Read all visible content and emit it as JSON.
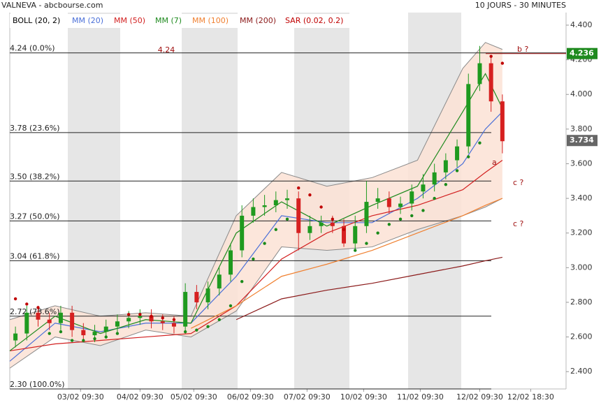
{
  "chart_data": {
    "type": "candlestick",
    "title": "VALNEVA - abcbourse.com",
    "subtitle": "10 JOURS - 30 MINUTES",
    "xlim": [
      0,
      98
    ],
    "ylim": [
      2.3,
      4.4
    ],
    "xticks": [
      {
        "value": 12.5,
        "label": "03/02 09:30"
      },
      {
        "value": 23,
        "label": "04/02 09:30"
      },
      {
        "value": 32.5,
        "label": "05/02 09:30"
      },
      {
        "value": 42.5,
        "label": "06/02 09:30"
      },
      {
        "value": 52.5,
        "label": "07/02 09:30"
      },
      {
        "value": 62.5,
        "label": "10/02 09:30"
      },
      {
        "value": 72.5,
        "label": "11/02 09:30"
      },
      {
        "value": 83,
        "label": "12/02 09:30"
      },
      {
        "value": 92,
        "label": "12/02 18:30"
      }
    ],
    "yticks": [
      {
        "value": 2.4,
        "label": "2.400"
      },
      {
        "value": 2.6,
        "label": "2.600"
      },
      {
        "value": 2.8,
        "label": "2.800"
      },
      {
        "value": 3.0,
        "label": "3.000"
      },
      {
        "value": 3.2,
        "label": "3.200"
      },
      {
        "value": 3.4,
        "label": "3.400"
      },
      {
        "value": 3.6,
        "label": "3.600"
      },
      {
        "value": 3.8,
        "label": "3.800"
      },
      {
        "value": 4.0,
        "label": "4.000"
      },
      {
        "value": 4.2,
        "label": "4.200"
      },
      {
        "value": 4.4,
        "label": "4.400"
      }
    ],
    "up_color": "#1f9a1f",
    "down_color": "#d62020",
    "x": [
      1,
      3,
      5,
      7,
      9,
      11,
      13,
      15,
      17,
      19,
      21,
      23,
      25,
      27,
      29,
      31,
      33,
      35,
      37,
      39,
      41,
      43,
      45,
      47,
      49,
      51,
      53,
      55,
      57,
      59,
      61,
      63,
      65,
      67,
      69,
      71,
      73,
      75,
      77,
      79,
      81,
      83,
      85,
      87
    ],
    "open": [
      2.58,
      2.62,
      2.74,
      2.7,
      2.68,
      2.74,
      2.64,
      2.61,
      2.63,
      2.66,
      2.69,
      2.71,
      2.72,
      2.69,
      2.68,
      2.66,
      2.86,
      2.8,
      2.88,
      2.96,
      3.1,
      3.3,
      3.35,
      3.36,
      3.39,
      3.4,
      3.2,
      3.24,
      3.26,
      3.24,
      3.14,
      3.24,
      3.38,
      3.4,
      3.35,
      3.37,
      3.44,
      3.48,
      3.55,
      3.62,
      3.7,
      4.06,
      4.18,
      3.96
    ],
    "high": [
      2.66,
      2.78,
      2.78,
      2.74,
      2.78,
      2.78,
      2.68,
      2.67,
      2.7,
      2.73,
      2.75,
      2.76,
      2.76,
      2.73,
      2.72,
      2.91,
      2.9,
      2.92,
      3.0,
      3.14,
      3.36,
      3.4,
      3.42,
      3.44,
      3.45,
      3.44,
      3.3,
      3.3,
      3.3,
      3.28,
      3.3,
      3.5,
      3.46,
      3.44,
      3.41,
      3.48,
      3.54,
      3.6,
      3.66,
      3.74,
      4.12,
      4.28,
      4.22,
      4.0
    ],
    "low": [
      2.54,
      2.58,
      2.66,
      2.64,
      2.64,
      2.6,
      2.57,
      2.57,
      2.59,
      2.62,
      2.65,
      2.67,
      2.65,
      2.64,
      2.62,
      2.62,
      2.76,
      2.76,
      2.84,
      2.92,
      3.06,
      3.26,
      3.3,
      3.32,
      3.34,
      3.1,
      3.16,
      3.2,
      3.2,
      3.12,
      3.1,
      3.2,
      3.34,
      3.31,
      3.31,
      3.33,
      3.4,
      3.44,
      3.51,
      3.58,
      3.66,
      4.02,
      3.9,
      3.66
    ],
    "close": [
      2.62,
      2.74,
      2.7,
      2.68,
      2.74,
      2.64,
      2.61,
      2.63,
      2.66,
      2.69,
      2.71,
      2.72,
      2.69,
      2.68,
      2.66,
      2.86,
      2.8,
      2.88,
      2.96,
      3.1,
      3.3,
      3.35,
      3.36,
      3.39,
      3.4,
      3.2,
      3.24,
      3.26,
      3.24,
      3.14,
      3.24,
      3.38,
      3.4,
      3.35,
      3.37,
      3.44,
      3.48,
      3.55,
      3.62,
      3.7,
      4.06,
      4.18,
      3.96,
      3.73
    ],
    "bollinger": {
      "name": "BOLL (20, 2)",
      "color": "#000000",
      "fill": "#fbe2d5",
      "edge": "#8a8a8a",
      "x": [
        0,
        8,
        16,
        24,
        32,
        40,
        48,
        56,
        64,
        72,
        80,
        84,
        87
      ],
      "upper": [
        2.7,
        2.78,
        2.72,
        2.74,
        2.72,
        3.3,
        3.55,
        3.47,
        3.52,
        3.62,
        4.15,
        4.3,
        4.26
      ],
      "lower": [
        2.42,
        2.6,
        2.55,
        2.64,
        2.6,
        2.75,
        3.12,
        3.1,
        3.12,
        3.22,
        3.3,
        3.35,
        3.4
      ]
    },
    "series": [
      {
        "name": "MM (20)",
        "color": "#4a6fd8",
        "x": [
          0,
          8,
          16,
          24,
          32,
          40,
          48,
          56,
          64,
          72,
          80,
          84,
          87
        ],
        "values": [
          2.46,
          2.68,
          2.63,
          2.68,
          2.68,
          2.95,
          3.3,
          3.26,
          3.26,
          3.4,
          3.6,
          3.8,
          3.9
        ]
      },
      {
        "name": "MM (50)",
        "color": "#d21f1f",
        "x": [
          0,
          8,
          16,
          24,
          32,
          40,
          48,
          56,
          64,
          72,
          80,
          84,
          87
        ],
        "values": [
          2.52,
          2.56,
          2.58,
          2.6,
          2.62,
          2.78,
          3.05,
          3.2,
          3.3,
          3.36,
          3.45,
          3.55,
          3.62
        ]
      },
      {
        "name": "MM (7)",
        "color": "#1e8a1e",
        "x": [
          0,
          8,
          16,
          24,
          32,
          40,
          48,
          56,
          64,
          72,
          80,
          84,
          87
        ],
        "values": [
          2.52,
          2.72,
          2.62,
          2.7,
          2.68,
          3.2,
          3.38,
          3.24,
          3.36,
          3.47,
          3.9,
          4.12,
          3.92
        ]
      },
      {
        "name": "MM (100)",
        "color": "#f08030",
        "x": [
          0,
          8,
          16,
          24,
          32,
          40,
          48,
          56,
          64,
          72,
          80,
          84,
          87
        ],
        "values": [
          null,
          null,
          null,
          null,
          2.65,
          2.78,
          2.95,
          3.02,
          3.1,
          3.2,
          3.3,
          3.36,
          3.4
        ]
      },
      {
        "name": "MM (200)",
        "color": "#8b1a1a",
        "x": [
          0,
          8,
          16,
          24,
          32,
          40,
          48,
          56,
          64,
          72,
          80,
          84,
          87
        ],
        "values": [
          null,
          null,
          null,
          null,
          null,
          2.7,
          2.82,
          2.87,
          2.91,
          2.96,
          3.01,
          3.04,
          3.06
        ]
      }
    ],
    "sar": {
      "name": "SAR (0.02, 0.2)",
      "color": "#c00000",
      "above_color": "#c00000",
      "below_color": "#1a8a1a",
      "values": [
        2.82,
        2.79,
        2.77,
        2.62,
        2.63,
        2.58,
        2.58,
        2.59,
        2.6,
        2.62,
        2.73,
        2.73,
        2.72,
        2.71,
        2.7,
        2.63,
        2.64,
        2.66,
        2.7,
        2.78,
        2.92,
        3.05,
        3.14,
        3.22,
        3.28,
        3.46,
        3.42,
        3.35,
        3.28,
        3.22,
        3.1,
        3.14,
        3.2,
        3.25,
        3.28,
        3.3,
        3.33,
        3.4,
        3.48,
        3.56,
        3.64,
        3.72,
        4.22,
        4.18
      ]
    },
    "fibonacci": [
      {
        "value": 4.24,
        "label": "4.24 (0.0%)"
      },
      {
        "value": 3.78,
        "label": "3.78 (23.6%)"
      },
      {
        "value": 3.5,
        "label": "3.50 (38.2%)"
      },
      {
        "value": 3.27,
        "label": "3.27 (50.0%)"
      },
      {
        "value": 3.04,
        "label": "3.04 (61.8%)"
      },
      {
        "value": 2.72,
        "label": "2.72 (78.6%)"
      },
      {
        "value": 2.3,
        "label": "2.30 (100.0%)"
      }
    ],
    "annotations": [
      "4.24",
      "b ?",
      "a",
      "c ?",
      "c ?"
    ],
    "annotation_color": "#a01010",
    "high_marker": {
      "value": 4.236,
      "label": "4.236",
      "color": "#1f8a1f"
    },
    "last_price": {
      "value": 3.734,
      "label": "3.734",
      "color": "#666666"
    }
  }
}
